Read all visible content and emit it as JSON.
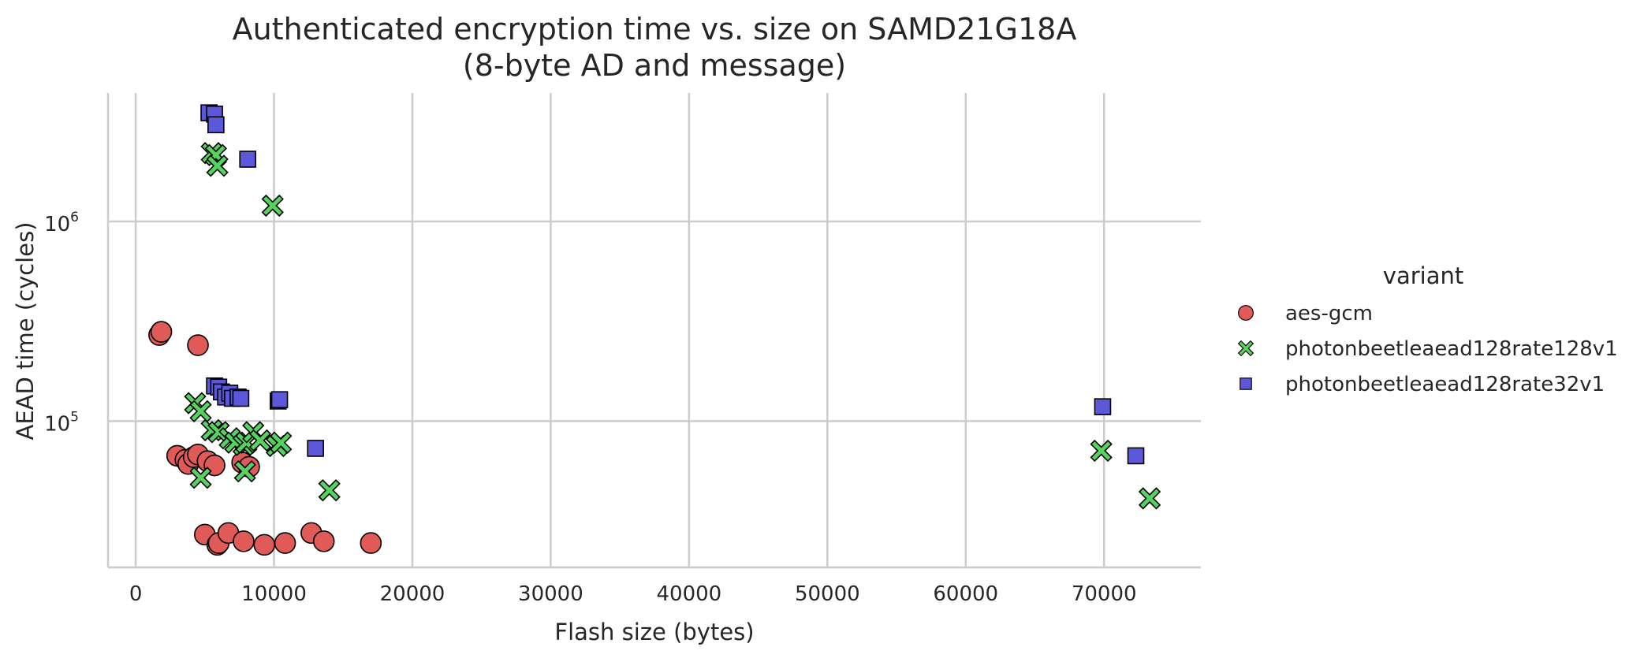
{
  "chart_data": {
    "type": "scatter",
    "title_line1": "Authenticated encryption time vs. size on SAMD21G18A",
    "title_line2": "(8-byte AD and message)",
    "xlabel": "Flash size (bytes)",
    "ylabel": "AEAD time (cycles)",
    "xlim": [
      -2000,
      77000
    ],
    "ylim": [
      18500,
      4400000
    ],
    "yscale": "log",
    "grid": true,
    "legend_title": "variant",
    "legend_position": "outside-right",
    "x_ticks": [
      0,
      10000,
      20000,
      30000,
      40000,
      50000,
      60000,
      70000
    ],
    "x_tick_labels": [
      "0",
      "10000",
      "20000",
      "30000",
      "40000",
      "50000",
      "60000",
      "70000"
    ],
    "y_ticks": [
      {
        "value": 1000000,
        "base": "10",
        "exp": "6"
      },
      {
        "value": 100000,
        "base": "10",
        "exp": "5"
      }
    ],
    "series": [
      {
        "name": "aes-gcm",
        "marker": "circle",
        "color": "#e05a57",
        "points": [
          [
            1700,
            270000
          ],
          [
            1850,
            280000
          ],
          [
            4500,
            240000
          ],
          [
            3000,
            67000
          ],
          [
            3600,
            64000
          ],
          [
            3800,
            61000
          ],
          [
            4200,
            66000
          ],
          [
            4500,
            68000
          ],
          [
            5200,
            63000
          ],
          [
            5700,
            60000
          ],
          [
            7700,
            62000
          ],
          [
            8200,
            59000
          ],
          [
            5000,
            27000
          ],
          [
            5900,
            24000
          ],
          [
            6000,
            24500
          ],
          [
            6700,
            27500
          ],
          [
            7800,
            25000
          ],
          [
            9300,
            24000
          ],
          [
            10800,
            24500
          ],
          [
            12700,
            27500
          ],
          [
            13600,
            25000
          ],
          [
            17000,
            24500
          ]
        ]
      },
      {
        "name": "photonbeetleaead128rate128v1",
        "marker": "x",
        "color": "#56d35e",
        "points": [
          [
            5500,
            2200000
          ],
          [
            5800,
            2150000
          ],
          [
            5900,
            1900000
          ],
          [
            9900,
            1200000
          ],
          [
            4300,
            123000
          ],
          [
            4700,
            112000
          ],
          [
            5500,
            90000
          ],
          [
            6000,
            88000
          ],
          [
            6800,
            82000
          ],
          [
            7200,
            78000
          ],
          [
            7800,
            76000
          ],
          [
            8000,
            78000
          ],
          [
            8500,
            88000
          ],
          [
            9000,
            80000
          ],
          [
            10200,
            75000
          ],
          [
            10500,
            78000
          ],
          [
            4700,
            52000
          ],
          [
            7900,
            56000
          ],
          [
            14000,
            45000
          ],
          [
            69800,
            71000
          ],
          [
            73300,
            41000
          ]
        ]
      },
      {
        "name": "photonbeetleaead128rate32v1",
        "marker": "square",
        "color": "#5d58da",
        "points": [
          [
            5300,
            3500000
          ],
          [
            5700,
            3450000
          ],
          [
            5800,
            3050000
          ],
          [
            8100,
            2050000
          ],
          [
            5700,
            150000
          ],
          [
            6000,
            148000
          ],
          [
            6200,
            140000
          ],
          [
            6500,
            132000
          ],
          [
            6800,
            138000
          ],
          [
            7000,
            130000
          ],
          [
            7400,
            132000
          ],
          [
            7600,
            130000
          ],
          [
            10300,
            126000
          ],
          [
            10400,
            128000
          ],
          [
            13000,
            73000
          ],
          [
            69900,
            118000
          ],
          [
            72300,
            67000
          ]
        ]
      }
    ]
  }
}
